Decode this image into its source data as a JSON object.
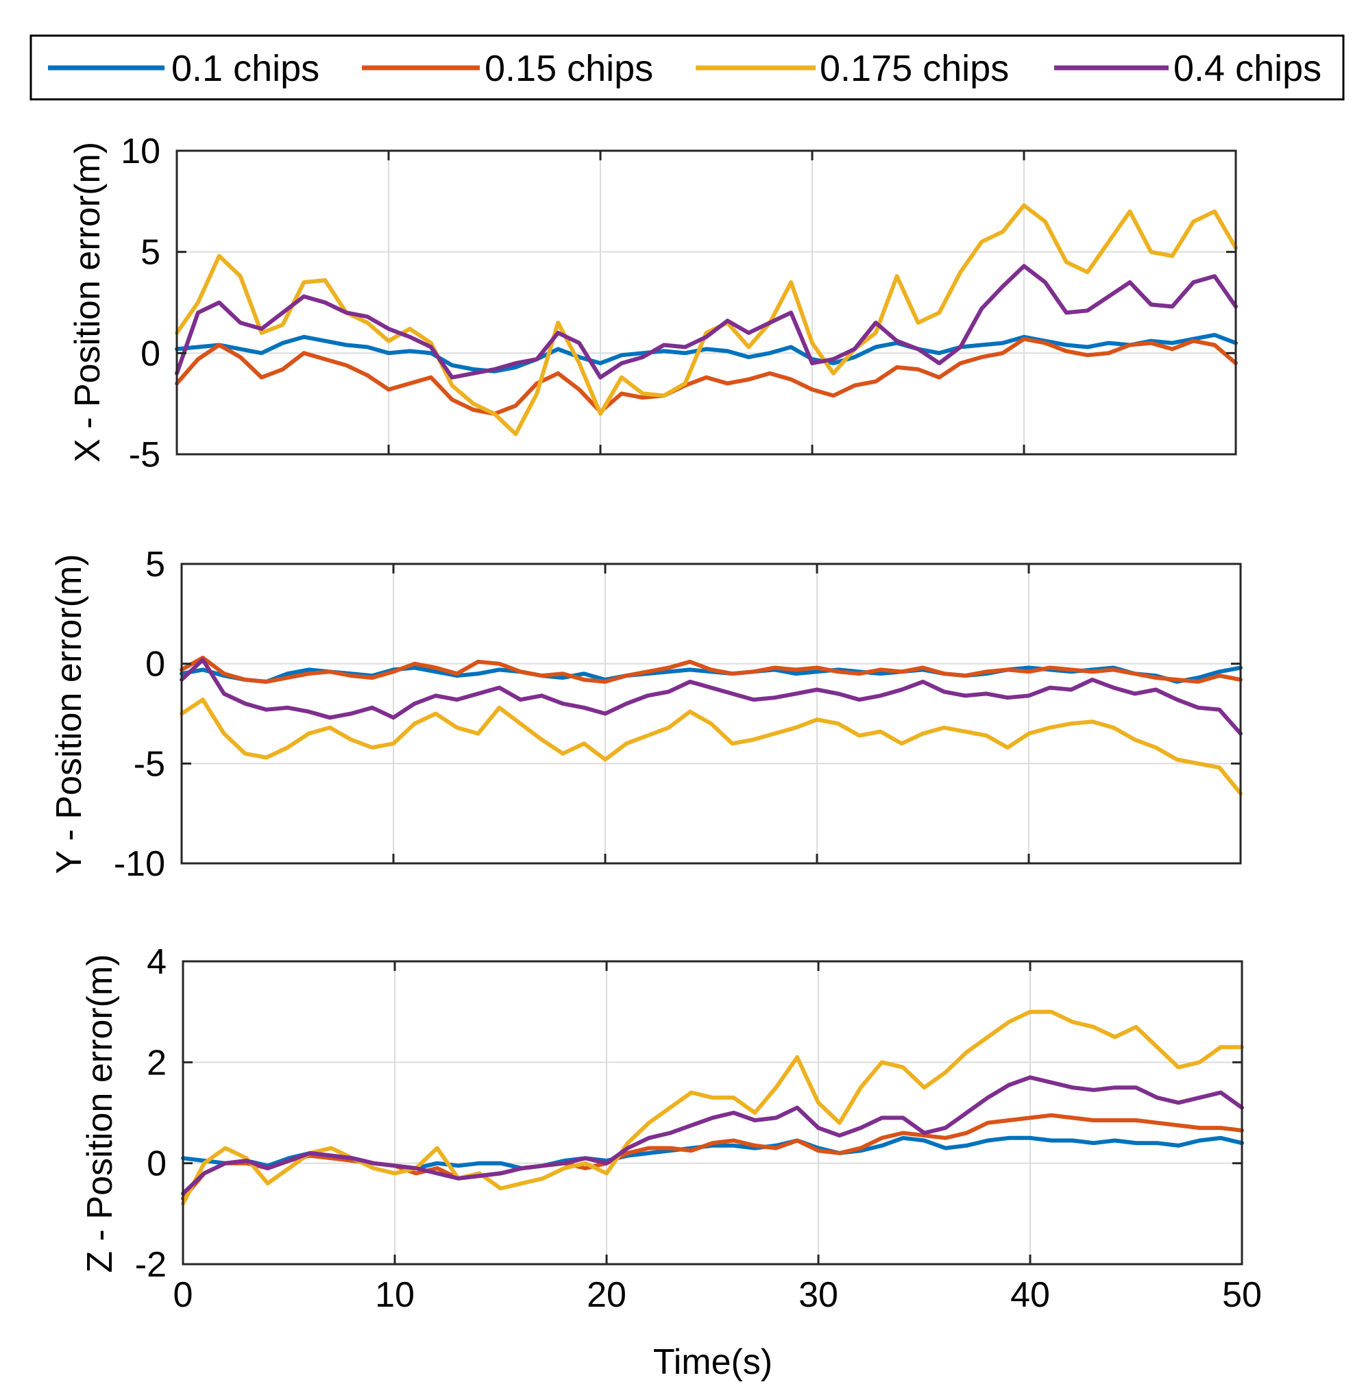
{
  "chart_data": [
    {
      "type": "line",
      "ylabel": "X - Position error(m)",
      "xlabel": "",
      "xlim": [
        0,
        50
      ],
      "ylim": [
        -5,
        10
      ],
      "xticks": [
        "",
        "",
        "",
        "",
        "",
        ""
      ],
      "yticks": [
        "10",
        "5",
        "0",
        "-5"
      ],
      "grid": true,
      "x": [
        0,
        1,
        2,
        3,
        4,
        5,
        6,
        7,
        8,
        9,
        10,
        11,
        12,
        13,
        14,
        15,
        16,
        17,
        18,
        19,
        20,
        21,
        22,
        23,
        24,
        25,
        26,
        27,
        28,
        29,
        30,
        31,
        32,
        33,
        34,
        35,
        36,
        37,
        38,
        39,
        40,
        41,
        42,
        43,
        44,
        45,
        46,
        47,
        48,
        49,
        50
      ],
      "series": [
        {
          "name": "0.1 chips",
          "color": "#0072BD",
          "values": [
            0.2,
            0.3,
            0.4,
            0.2,
            0.0,
            0.5,
            0.8,
            0.6,
            0.4,
            0.3,
            0.0,
            0.1,
            0.0,
            -0.6,
            -0.8,
            -0.9,
            -0.7,
            -0.3,
            0.2,
            -0.2,
            -0.5,
            -0.1,
            0.0,
            0.1,
            0.0,
            0.2,
            0.1,
            -0.2,
            0.0,
            0.3,
            -0.3,
            -0.5,
            -0.2,
            0.3,
            0.5,
            0.2,
            0.0,
            0.3,
            0.4,
            0.5,
            0.8,
            0.6,
            0.4,
            0.3,
            0.5,
            0.4,
            0.6,
            0.5,
            0.7,
            0.9,
            0.5
          ]
        },
        {
          "name": "0.15 chips",
          "color": "#D95319",
          "values": [
            -1.5,
            -0.3,
            0.4,
            -0.2,
            -1.2,
            -0.8,
            0.0,
            -0.3,
            -0.6,
            -1.1,
            -1.8,
            -1.5,
            -1.2,
            -2.3,
            -2.8,
            -3.0,
            -2.6,
            -1.5,
            -1.0,
            -1.8,
            -2.9,
            -2.0,
            -2.2,
            -2.1,
            -1.6,
            -1.2,
            -1.5,
            -1.3,
            -1.0,
            -1.3,
            -1.8,
            -2.1,
            -1.6,
            -1.4,
            -0.7,
            -0.8,
            -1.2,
            -0.5,
            -0.2,
            0.0,
            0.7,
            0.5,
            0.1,
            -0.1,
            0.0,
            0.4,
            0.5,
            0.2,
            0.6,
            0.4,
            -0.5
          ]
        },
        {
          "name": "0.175 chips",
          "color": "#EDB120",
          "values": [
            1.0,
            2.5,
            4.8,
            3.8,
            1.0,
            1.4,
            3.5,
            3.6,
            2.0,
            1.5,
            0.6,
            1.2,
            0.5,
            -1.6,
            -2.5,
            -3.0,
            -4.0,
            -2.0,
            1.5,
            -0.5,
            -3.0,
            -1.2,
            -2.0,
            -2.1,
            -1.5,
            1.0,
            1.5,
            0.3,
            1.5,
            3.5,
            0.5,
            -1.0,
            0.2,
            1.0,
            3.8,
            1.5,
            2.0,
            4.0,
            5.5,
            6.0,
            7.3,
            6.5,
            4.5,
            4.0,
            5.5,
            7.0,
            5.0,
            4.8,
            6.5,
            7.0,
            5.2
          ]
        },
        {
          "name": "0.4 chips",
          "color": "#7E2F8E",
          "values": [
            -1.0,
            2.0,
            2.5,
            1.5,
            1.2,
            2.0,
            2.8,
            2.5,
            2.0,
            1.8,
            1.2,
            0.8,
            0.3,
            -1.2,
            -1.0,
            -0.8,
            -0.5,
            -0.3,
            1.0,
            0.5,
            -1.2,
            -0.5,
            -0.2,
            0.4,
            0.3,
            0.8,
            1.6,
            1.0,
            1.5,
            2.0,
            -0.5,
            -0.3,
            0.2,
            1.5,
            0.6,
            0.2,
            -0.5,
            0.3,
            2.2,
            3.3,
            4.3,
            3.5,
            2.0,
            2.1,
            2.8,
            3.5,
            2.4,
            2.3,
            3.5,
            3.8,
            2.3
          ]
        }
      ]
    },
    {
      "type": "line",
      "ylabel": "Y - Position error(m)",
      "xlabel": "",
      "xlim": [
        0,
        50
      ],
      "ylim": [
        -10,
        5
      ],
      "xticks": [
        "",
        "",
        "",
        "",
        "",
        ""
      ],
      "yticks": [
        "5",
        "0",
        "-5",
        "-10"
      ],
      "grid": true,
      "x": [
        0,
        1,
        2,
        3,
        4,
        5,
        6,
        7,
        8,
        9,
        10,
        11,
        12,
        13,
        14,
        15,
        16,
        17,
        18,
        19,
        20,
        21,
        22,
        23,
        24,
        25,
        26,
        27,
        28,
        29,
        30,
        31,
        32,
        33,
        34,
        35,
        36,
        37,
        38,
        39,
        40,
        41,
        42,
        43,
        44,
        45,
        46,
        47,
        48,
        49,
        50
      ],
      "series": [
        {
          "name": "0.1 chips",
          "color": "#0072BD",
          "values": [
            -0.5,
            -0.3,
            -0.6,
            -0.8,
            -0.9,
            -0.5,
            -0.3,
            -0.4,
            -0.5,
            -0.6,
            -0.3,
            -0.2,
            -0.4,
            -0.6,
            -0.5,
            -0.3,
            -0.4,
            -0.6,
            -0.7,
            -0.5,
            -0.8,
            -0.6,
            -0.5,
            -0.4,
            -0.3,
            -0.4,
            -0.5,
            -0.4,
            -0.3,
            -0.5,
            -0.4,
            -0.3,
            -0.4,
            -0.5,
            -0.4,
            -0.3,
            -0.5,
            -0.6,
            -0.5,
            -0.3,
            -0.2,
            -0.3,
            -0.4,
            -0.3,
            -0.2,
            -0.5,
            -0.6,
            -0.9,
            -0.7,
            -0.4,
            -0.2
          ]
        },
        {
          "name": "0.15 chips",
          "color": "#D95319",
          "values": [
            -0.3,
            0.3,
            -0.5,
            -0.8,
            -0.9,
            -0.7,
            -0.5,
            -0.4,
            -0.6,
            -0.7,
            -0.4,
            0.0,
            -0.2,
            -0.5,
            0.1,
            0.0,
            -0.4,
            -0.6,
            -0.5,
            -0.8,
            -0.9,
            -0.6,
            -0.4,
            -0.2,
            0.1,
            -0.3,
            -0.5,
            -0.4,
            -0.2,
            -0.3,
            -0.2,
            -0.4,
            -0.5,
            -0.3,
            -0.4,
            -0.2,
            -0.5,
            -0.6,
            -0.4,
            -0.3,
            -0.4,
            -0.2,
            -0.3,
            -0.4,
            -0.3,
            -0.5,
            -0.7,
            -0.8,
            -0.9,
            -0.6,
            -0.8
          ]
        },
        {
          "name": "0.175 chips",
          "color": "#EDB120",
          "values": [
            -2.5,
            -1.8,
            -3.5,
            -4.5,
            -4.7,
            -4.2,
            -3.5,
            -3.2,
            -3.8,
            -4.2,
            -4.0,
            -3.0,
            -2.5,
            -3.2,
            -3.5,
            -2.2,
            -3.0,
            -3.8,
            -4.5,
            -4.0,
            -4.8,
            -4.0,
            -3.6,
            -3.2,
            -2.4,
            -3.0,
            -4.0,
            -3.8,
            -3.5,
            -3.2,
            -2.8,
            -3.0,
            -3.6,
            -3.4,
            -4.0,
            -3.5,
            -3.2,
            -3.4,
            -3.6,
            -4.2,
            -3.5,
            -3.2,
            -3.0,
            -2.9,
            -3.2,
            -3.8,
            -4.2,
            -4.8,
            -5.0,
            -5.2,
            -6.5
          ]
        },
        {
          "name": "0.4 chips",
          "color": "#7E2F8E",
          "values": [
            -0.8,
            0.2,
            -1.5,
            -2.0,
            -2.3,
            -2.2,
            -2.4,
            -2.7,
            -2.5,
            -2.2,
            -2.7,
            -2.0,
            -1.6,
            -1.8,
            -1.5,
            -1.2,
            -1.8,
            -1.6,
            -2.0,
            -2.2,
            -2.5,
            -2.0,
            -1.6,
            -1.4,
            -0.9,
            -1.2,
            -1.5,
            -1.8,
            -1.7,
            -1.5,
            -1.3,
            -1.5,
            -1.8,
            -1.6,
            -1.3,
            -0.9,
            -1.4,
            -1.6,
            -1.5,
            -1.7,
            -1.6,
            -1.2,
            -1.3,
            -0.8,
            -1.2,
            -1.5,
            -1.3,
            -1.8,
            -2.2,
            -2.3,
            -3.5
          ]
        }
      ]
    },
    {
      "type": "line",
      "ylabel": "Z - Position error(m)",
      "xlabel": "Time(s)",
      "xlim": [
        0,
        50
      ],
      "ylim": [
        -2,
        4
      ],
      "xticks": [
        "0",
        "10",
        "20",
        "30",
        "40",
        "50"
      ],
      "yticks": [
        "4",
        "2",
        "0",
        "-2"
      ],
      "grid": true,
      "x": [
        0,
        1,
        2,
        3,
        4,
        5,
        6,
        7,
        8,
        9,
        10,
        11,
        12,
        13,
        14,
        15,
        16,
        17,
        18,
        19,
        20,
        21,
        22,
        23,
        24,
        25,
        26,
        27,
        28,
        29,
        30,
        31,
        32,
        33,
        34,
        35,
        36,
        37,
        38,
        39,
        40,
        41,
        42,
        43,
        44,
        45,
        46,
        47,
        48,
        49,
        50
      ],
      "series": [
        {
          "name": "0.1 chips",
          "color": "#0072BD",
          "values": [
            0.1,
            0.05,
            0.0,
            0.05,
            -0.05,
            0.1,
            0.2,
            0.15,
            0.1,
            0.0,
            -0.05,
            -0.1,
            0.0,
            -0.05,
            0.0,
            0.0,
            -0.1,
            -0.05,
            0.05,
            0.1,
            0.05,
            0.15,
            0.2,
            0.25,
            0.3,
            0.35,
            0.35,
            0.3,
            0.35,
            0.45,
            0.3,
            0.2,
            0.25,
            0.35,
            0.5,
            0.45,
            0.3,
            0.35,
            0.45,
            0.5,
            0.5,
            0.45,
            0.45,
            0.4,
            0.45,
            0.4,
            0.4,
            0.35,
            0.45,
            0.5,
            0.4
          ]
        },
        {
          "name": "0.15 chips",
          "color": "#D95319",
          "values": [
            -0.7,
            -0.2,
            0.0,
            0.0,
            -0.1,
            0.05,
            0.15,
            0.1,
            0.05,
            0.0,
            -0.05,
            -0.2,
            -0.1,
            -0.3,
            -0.25,
            -0.2,
            -0.1,
            -0.05,
            0.0,
            -0.1,
            0.0,
            0.2,
            0.3,
            0.3,
            0.25,
            0.4,
            0.45,
            0.35,
            0.3,
            0.45,
            0.25,
            0.2,
            0.3,
            0.5,
            0.6,
            0.55,
            0.5,
            0.6,
            0.8,
            0.85,
            0.9,
            0.95,
            0.9,
            0.85,
            0.85,
            0.85,
            0.8,
            0.75,
            0.7,
            0.7,
            0.65
          ]
        },
        {
          "name": "0.175 chips",
          "color": "#EDB120",
          "values": [
            -0.8,
            0.0,
            0.3,
            0.1,
            -0.4,
            -0.1,
            0.2,
            0.3,
            0.1,
            -0.1,
            -0.2,
            -0.1,
            0.3,
            -0.3,
            -0.2,
            -0.5,
            -0.4,
            -0.3,
            -0.1,
            0.0,
            -0.2,
            0.4,
            0.8,
            1.1,
            1.4,
            1.3,
            1.3,
            1.0,
            1.5,
            2.1,
            1.2,
            0.8,
            1.5,
            2.0,
            1.9,
            1.5,
            1.8,
            2.2,
            2.5,
            2.8,
            3.0,
            3.0,
            2.8,
            2.7,
            2.5,
            2.7,
            2.3,
            1.9,
            2.0,
            2.3,
            2.3
          ]
        },
        {
          "name": "0.4 chips",
          "color": "#7E2F8E",
          "values": [
            -0.6,
            -0.2,
            0.0,
            0.05,
            -0.1,
            0.05,
            0.2,
            0.15,
            0.1,
            0.0,
            -0.05,
            -0.1,
            -0.2,
            -0.3,
            -0.25,
            -0.2,
            -0.1,
            -0.05,
            0.0,
            0.1,
            0.0,
            0.3,
            0.5,
            0.6,
            0.75,
            0.9,
            1.0,
            0.85,
            0.9,
            1.1,
            0.7,
            0.55,
            0.7,
            0.9,
            0.9,
            0.6,
            0.7,
            1.0,
            1.3,
            1.55,
            1.7,
            1.6,
            1.5,
            1.45,
            1.5,
            1.5,
            1.3,
            1.2,
            1.3,
            1.4,
            1.1
          ]
        }
      ]
    }
  ],
  "legend": {
    "placement": "top",
    "items": [
      {
        "label": "0.1 chips",
        "color": "#0072BD"
      },
      {
        "label": "0.15 chips",
        "color": "#D95319"
      },
      {
        "label": "0.175 chips",
        "color": "#EDB120"
      },
      {
        "label": "0.4 chips",
        "color": "#7E2F8E"
      }
    ]
  }
}
